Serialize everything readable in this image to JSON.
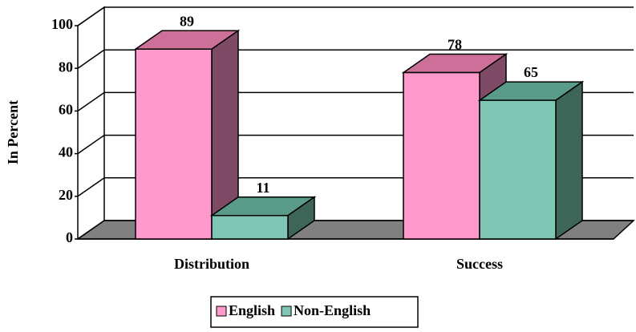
{
  "chart_data": {
    "type": "bar3d",
    "y_label": "In Percent",
    "categories": [
      "Distribution",
      "Success"
    ],
    "series": [
      {
        "name": "English",
        "color": "#ff99cc",
        "top": "#cc6f99",
        "side": "#7f4a66",
        "values": [
          89,
          78
        ]
      },
      {
        "name": "Non-English",
        "color": "#7fc6b4",
        "top": "#5a9a88",
        "side": "#3d6659",
        "values": [
          11,
          65
        ]
      }
    ],
    "ylim": [
      0,
      100
    ],
    "yticks": [
      0,
      20,
      40,
      60,
      80,
      100
    ],
    "grid": true,
    "legend": "bottom"
  }
}
